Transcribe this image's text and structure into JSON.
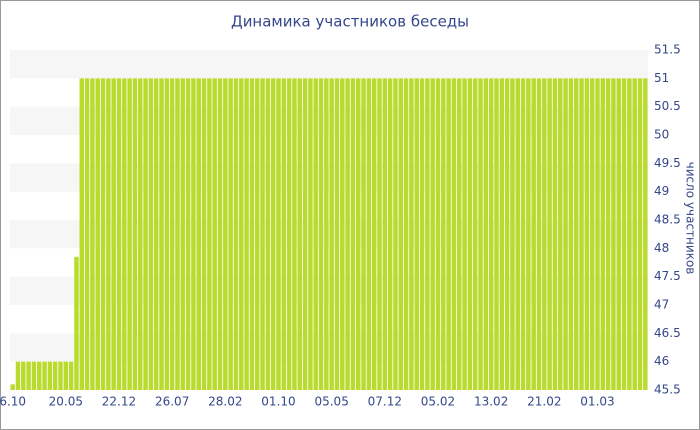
{
  "chart_data": {
    "type": "bar",
    "title": "Динамика участников беседы",
    "y_label": "число участников",
    "color": "#b8db2e",
    "grid": "bands",
    "band_color": "#f6f6f6",
    "y_axis_side": "right",
    "ylim": [
      45.5,
      51.5
    ],
    "yticks": [
      45.5,
      46,
      46.5,
      47,
      47.5,
      48,
      48.5,
      49,
      49.5,
      50,
      50.5,
      51,
      51.5
    ],
    "categories": [
      "6.10",
      null,
      null,
      null,
      null,
      null,
      null,
      null,
      null,
      null,
      "20.05",
      null,
      null,
      null,
      null,
      null,
      null,
      null,
      null,
      null,
      "22.12",
      null,
      null,
      null,
      null,
      null,
      null,
      null,
      null,
      null,
      "26.07",
      null,
      null,
      null,
      null,
      null,
      null,
      null,
      null,
      null,
      "28.02",
      null,
      null,
      null,
      null,
      null,
      null,
      null,
      null,
      null,
      "01.10",
      null,
      null,
      null,
      null,
      null,
      null,
      null,
      null,
      null,
      "05.05",
      null,
      null,
      null,
      null,
      null,
      null,
      null,
      null,
      null,
      "07.12",
      null,
      null,
      null,
      null,
      null,
      null,
      null,
      null,
      null,
      "05.02",
      null,
      null,
      null,
      null,
      null,
      null,
      null,
      null,
      null,
      "13.02",
      null,
      null,
      null,
      null,
      null,
      null,
      null,
      null,
      null,
      "21.02",
      null,
      null,
      null,
      null,
      null,
      null,
      null,
      null,
      null,
      "01.03",
      null,
      null,
      null,
      null,
      null,
      null,
      null,
      null,
      null
    ],
    "values": [
      45.6,
      46,
      46,
      46,
      46,
      46,
      46,
      46,
      46,
      46,
      46,
      46,
      47.85,
      51,
      51,
      51,
      51,
      51,
      51,
      51,
      51,
      51,
      51,
      51,
      51,
      51,
      51,
      51,
      51,
      51,
      51,
      51,
      51,
      51,
      51,
      51,
      51,
      51,
      51,
      51,
      51,
      51,
      51,
      51,
      51,
      51,
      51,
      51,
      51,
      51,
      51,
      51,
      51,
      51,
      51,
      51,
      51,
      51,
      51,
      51,
      51,
      51,
      51,
      51,
      51,
      51,
      51,
      51,
      51,
      51,
      51,
      51,
      51,
      51,
      51,
      51,
      51,
      51,
      51,
      51,
      51,
      51,
      51,
      51,
      51,
      51,
      51,
      51,
      51,
      51,
      51,
      51,
      51,
      51,
      51,
      51,
      51,
      51,
      51,
      51,
      51,
      51,
      51,
      51,
      51,
      51,
      51,
      51,
      51,
      51,
      51,
      51,
      51,
      51,
      51,
      51,
      51,
      51,
      51,
      51
    ]
  }
}
